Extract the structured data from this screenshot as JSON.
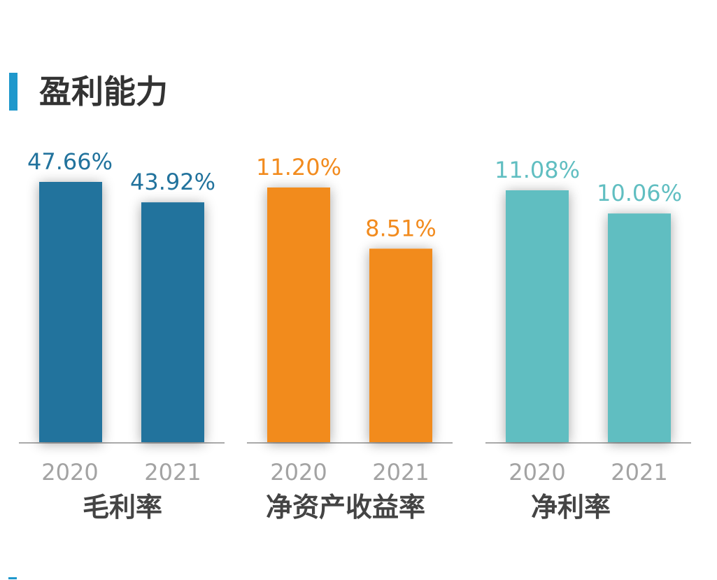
{
  "title": "盈利能力",
  "chart_data": [
    {
      "type": "bar",
      "title": "毛利率",
      "categories": [
        "2020",
        "2021"
      ],
      "values": [
        47.66,
        43.92
      ],
      "labels": [
        "47.66%",
        "43.92%"
      ],
      "color": "#22739d",
      "ylim": [
        0,
        50
      ]
    },
    {
      "type": "bar",
      "title": "净资产收益率",
      "categories": [
        "2020",
        "2021"
      ],
      "values": [
        11.2,
        8.51
      ],
      "labels": [
        "11.20%",
        "8.51%"
      ],
      "color": "#f28b1e",
      "ylim": [
        0,
        11.7
      ]
    },
    {
      "type": "bar",
      "title": "净利率",
      "categories": [
        "2020",
        "2021"
      ],
      "values": [
        11.08,
        10.06
      ],
      "labels": [
        "11.08%",
        "10.06%"
      ],
      "color": "#60bec1",
      "ylim": [
        0,
        11.7
      ]
    }
  ],
  "colors": {
    "accent": "#1f98cc",
    "axis": "#aaaaaa",
    "tick_text": "#a3a3a3",
    "group_label": "#444444"
  }
}
